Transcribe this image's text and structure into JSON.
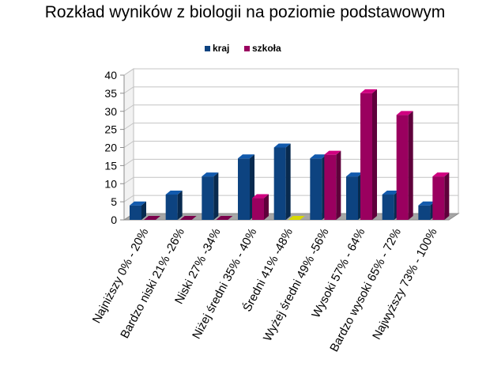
{
  "chart_data": {
    "type": "bar",
    "title": "Rozkład wyników z biologii na poziomie podstawowym",
    "xlabel": "",
    "ylabel": "",
    "categories": [
      "Najniższy 0% - 20%",
      "Bardzo niski 21% -26%",
      "Niski 27% -34%",
      "Niżej średni 35% - 40%",
      "Średni 41% -48%",
      "Wyżej średni 49% -56%",
      "Wysoki 57% - 64%",
      "Bardzo wysoki 65% - 72%",
      "Najwyższy 73% - 100%"
    ],
    "series": [
      {
        "name": "kraj",
        "values": [
          4,
          7,
          12,
          17,
          20,
          17,
          12,
          7,
          4
        ],
        "color": "#0d4380"
      },
      {
        "name": "szkoła",
        "values": [
          0,
          0,
          0,
          6,
          0,
          18,
          35,
          29,
          12
        ],
        "color": "#9a005f"
      }
    ],
    "zero_marker_color": "#d8d800",
    "ylim": [
      0,
      40
    ],
    "yticks": [
      0,
      5,
      10,
      15,
      20,
      25,
      30,
      35,
      40
    ],
    "grid": true,
    "legend_position": "top"
  }
}
